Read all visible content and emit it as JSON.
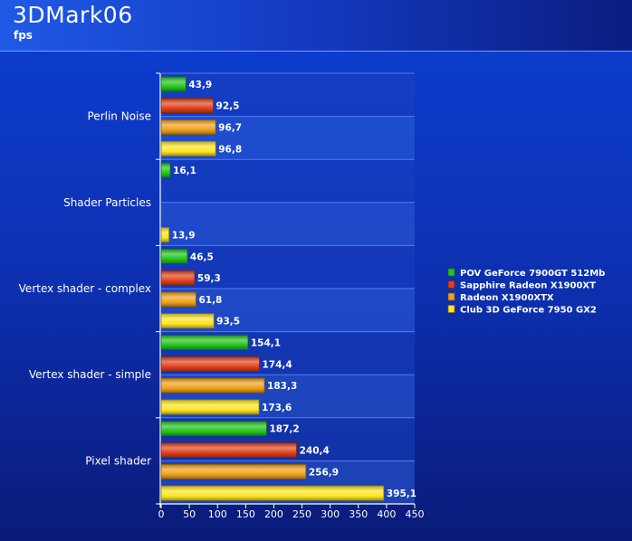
{
  "chart_data": {
    "type": "bar",
    "title": "3DMark06",
    "subtitle": "fps",
    "categories": [
      "Perlin Noise",
      "Shader Particles",
      "Vertex shader - complex",
      "Vertex shader - simple",
      "Pixel shader"
    ],
    "series": [
      {
        "name": "POV GeForce 7900GT 512Mb",
        "color": "#22c41a",
        "values": [
          43.9,
          16.1,
          46.5,
          154.1,
          187.2
        ],
        "labels": [
          "43,9",
          "16,1",
          "46,5",
          "154,1",
          "187,2"
        ]
      },
      {
        "name": "Sapphire Radeon X1900XT",
        "color": "#e0401a",
        "values": [
          92.5,
          null,
          59.3,
          174.4,
          240.4
        ],
        "labels": [
          "92,5",
          "",
          "59,3",
          "174,4",
          "240,4"
        ]
      },
      {
        "name": "Radeon X1900XTX",
        "color": "#f0a018",
        "values": [
          96.7,
          null,
          61.8,
          183.3,
          256.9
        ],
        "labels": [
          "96,7",
          "",
          "61,8",
          "183,3",
          "256,9"
        ]
      },
      {
        "name": "Club 3D GeForce 7950 GX2",
        "color": "#fde51f",
        "values": [
          96.8,
          13.9,
          93.5,
          173.6,
          395.1
        ],
        "labels": [
          "96,8",
          "13,9",
          "93,5",
          "173,6",
          "395,1"
        ]
      }
    ],
    "xlim": [
      0,
      450
    ],
    "ticks": [
      0,
      50,
      100,
      150,
      200,
      250,
      300,
      350,
      400,
      450
    ],
    "tick_labels": [
      "0",
      "50",
      "100",
      "150",
      "200",
      "250",
      "300",
      "350",
      "400",
      "450"
    ],
    "grid": true,
    "legend_position": "right",
    "orientation": "horizontal"
  }
}
